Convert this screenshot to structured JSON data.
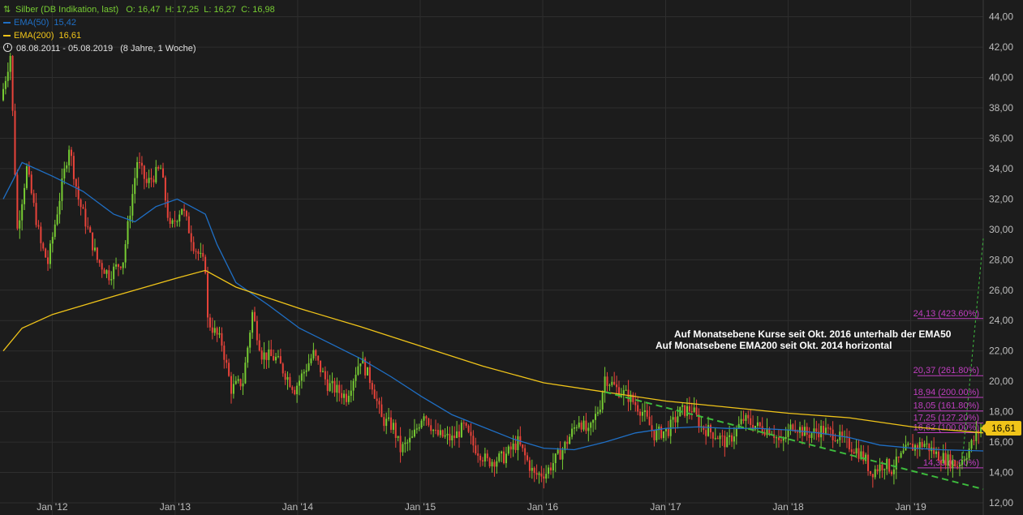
{
  "legend": {
    "symbol_icon": "candlestick-icon",
    "symbol_label": "Silber (DB Indikation, last)",
    "ohlc": {
      "open": "O: 16,47",
      "high": "H: 17,25",
      "low": "L: 16,27",
      "close": "C: 16,98"
    },
    "ema50_label": "EMA(50)",
    "ema50_value": "15,42",
    "ema200_label": "EMA(200)",
    "ema200_value": "16,61",
    "range_label": "08.08.2011 - 05.08.2019",
    "range_duration": "(8 Jahre, 1 Woche)"
  },
  "annotations": {
    "line1": "Auf Monatsebene Kurse seit Okt. 2016 unterhalb der EMA50",
    "line2": "Auf Monatsebene EMA200 seit Okt. 2014 horizontal"
  },
  "price_badge": "16,61",
  "colors": {
    "background": "#1c1c1c",
    "grid": "#2e2e2e",
    "axis_text": "#bdbdbd",
    "candle_up": "#77cc33",
    "candle_down": "#e8433a",
    "ema50": "#1f6fc5",
    "ema200": "#f0c419",
    "fibonacci": "#c03fc0",
    "trendline": "#3dbb3d",
    "annotation": "#ffffff"
  },
  "chart_data": {
    "type": "candlestick",
    "title": "Silber (DB Indikation, last)",
    "x_range": [
      "2011-08-08",
      "2019-08-05"
    ],
    "ylim": [
      11.2,
      45.1
    ],
    "y_ticks": [
      "12,00",
      "14,00",
      "16,00",
      "18,00",
      "20,00",
      "22,00",
      "24,00",
      "26,00",
      "28,00",
      "30,00",
      "32,00",
      "34,00",
      "36,00",
      "38,00",
      "40,00",
      "42,00",
      "44,00"
    ],
    "x_ticks": [
      {
        "label": "Jan '12",
        "date": "2012-01-01"
      },
      {
        "label": "Jan '13",
        "date": "2013-01-01"
      },
      {
        "label": "Jan '14",
        "date": "2014-01-01"
      },
      {
        "label": "Jan '15",
        "date": "2015-01-01"
      },
      {
        "label": "Jan '16",
        "date": "2016-01-01"
      },
      {
        "label": "Jan '17",
        "date": "2017-01-01"
      },
      {
        "label": "Jan '18",
        "date": "2018-01-01"
      },
      {
        "label": "Jan '19",
        "date": "2019-01-01"
      }
    ],
    "grid": true,
    "price_path": [
      [
        "2011-08-08",
        38.5
      ],
      [
        "2011-09-05",
        41.5
      ],
      [
        "2011-09-26",
        30.0
      ],
      [
        "2011-10-24",
        34.0
      ],
      [
        "2011-12-05",
        29.0
      ],
      [
        "2011-12-26",
        27.8
      ],
      [
        "2012-02-27",
        35.5
      ],
      [
        "2012-03-26",
        32.0
      ],
      [
        "2012-05-21",
        28.0
      ],
      [
        "2012-06-25",
        27.0
      ],
      [
        "2012-08-06",
        28.0
      ],
      [
        "2012-09-17",
        34.5
      ],
      [
        "2012-10-15",
        33.0
      ],
      [
        "2012-11-26",
        34.0
      ],
      [
        "2012-12-24",
        30.0
      ],
      [
        "2013-01-28",
        31.5
      ],
      [
        "2013-03-04",
        29.0
      ],
      [
        "2013-04-08",
        27.5
      ],
      [
        "2013-04-15",
        24.0
      ],
      [
        "2013-05-27",
        22.5
      ],
      [
        "2013-06-24",
        19.5
      ],
      [
        "2013-07-29",
        20.0
      ],
      [
        "2013-08-26",
        24.5
      ],
      [
        "2013-09-23",
        21.8
      ],
      [
        "2013-11-04",
        21.5
      ],
      [
        "2013-12-30",
        19.5
      ],
      [
        "2014-02-24",
        21.8
      ],
      [
        "2014-04-07",
        19.8
      ],
      [
        "2014-06-02",
        19.0
      ],
      [
        "2014-07-14",
        21.5
      ],
      [
        "2014-08-18",
        19.8
      ],
      [
        "2014-09-15",
        17.5
      ],
      [
        "2014-10-20",
        17.0
      ],
      [
        "2014-11-10",
        15.5
      ],
      [
        "2014-12-15",
        16.2
      ],
      [
        "2015-01-19",
        18.0
      ],
      [
        "2015-02-23",
        16.5
      ],
      [
        "2015-04-13",
        16.2
      ],
      [
        "2015-05-18",
        17.0
      ],
      [
        "2015-06-15",
        15.8
      ],
      [
        "2015-07-27",
        14.7
      ],
      [
        "2015-09-14",
        15.0
      ],
      [
        "2015-10-26",
        16.0
      ],
      [
        "2015-12-14",
        13.8
      ],
      [
        "2016-01-18",
        14.0
      ],
      [
        "2016-03-07",
        15.5
      ],
      [
        "2016-04-25",
        17.5
      ],
      [
        "2016-05-23",
        16.5
      ],
      [
        "2016-06-27",
        18.5
      ],
      [
        "2016-07-11",
        20.3
      ],
      [
        "2016-08-15",
        19.5
      ],
      [
        "2016-09-19",
        19.0
      ],
      [
        "2016-10-31",
        18.0
      ],
      [
        "2016-12-05",
        16.5
      ],
      [
        "2017-01-16",
        16.8
      ],
      [
        "2017-02-20",
        18.0
      ],
      [
        "2017-03-27",
        18.2
      ],
      [
        "2017-04-24",
        17.0
      ],
      [
        "2017-06-05",
        16.5
      ],
      [
        "2017-07-10",
        15.9
      ],
      [
        "2017-08-28",
        17.5
      ],
      [
        "2017-10-09",
        17.0
      ],
      [
        "2017-11-20",
        16.8
      ],
      [
        "2017-12-18",
        15.8
      ],
      [
        "2018-01-22",
        17.2
      ],
      [
        "2018-03-05",
        16.5
      ],
      [
        "2018-04-16",
        16.8
      ],
      [
        "2018-05-28",
        16.5
      ],
      [
        "2018-06-25",
        16.0
      ],
      [
        "2018-07-30",
        15.5
      ],
      [
        "2018-08-27",
        14.8
      ],
      [
        "2018-09-10",
        14.0
      ],
      [
        "2018-10-22",
        14.6
      ],
      [
        "2018-11-12",
        14.2
      ],
      [
        "2018-12-31",
        15.6
      ],
      [
        "2019-02-18",
        15.9
      ],
      [
        "2019-03-25",
        15.2
      ],
      [
        "2019-04-29",
        14.8
      ],
      [
        "2019-05-27",
        14.5
      ],
      [
        "2019-06-24",
        15.3
      ],
      [
        "2019-07-22",
        16.4
      ],
      [
        "2019-08-05",
        16.98
      ]
    ],
    "series": [
      {
        "name": "EMA(50)",
        "points": [
          [
            "2011-08-08",
            32.0
          ],
          [
            "2011-10-03",
            34.4
          ],
          [
            "2012-01-02",
            33.5
          ],
          [
            "2012-04-02",
            32.5
          ],
          [
            "2012-07-02",
            31.0
          ],
          [
            "2012-09-03",
            30.5
          ],
          [
            "2012-11-05",
            31.5
          ],
          [
            "2013-01-07",
            32.0
          ],
          [
            "2013-04-01",
            31.0
          ],
          [
            "2013-05-06",
            29.0
          ],
          [
            "2013-07-01",
            26.5
          ],
          [
            "2013-10-07",
            25.0
          ],
          [
            "2014-01-06",
            23.5
          ],
          [
            "2014-04-07",
            22.5
          ],
          [
            "2014-07-07",
            21.5
          ],
          [
            "2014-10-06",
            20.3
          ],
          [
            "2015-01-05",
            19.0
          ],
          [
            "2015-04-06",
            17.8
          ],
          [
            "2015-07-06",
            17.0
          ],
          [
            "2015-10-05",
            16.2
          ],
          [
            "2016-01-04",
            15.6
          ],
          [
            "2016-04-04",
            15.5
          ],
          [
            "2016-07-04",
            16.0
          ],
          [
            "2016-10-03",
            16.6
          ],
          [
            "2017-01-02",
            16.9
          ],
          [
            "2017-04-03",
            17.0
          ],
          [
            "2017-07-03",
            16.9
          ],
          [
            "2017-10-02",
            16.9
          ],
          [
            "2018-01-01",
            16.8
          ],
          [
            "2018-04-02",
            16.6
          ],
          [
            "2018-07-02",
            16.3
          ],
          [
            "2018-10-01",
            15.8
          ],
          [
            "2019-01-07",
            15.6
          ],
          [
            "2019-04-01",
            15.5
          ],
          [
            "2019-08-05",
            15.42
          ]
        ]
      },
      {
        "name": "EMA(200)",
        "points": [
          [
            "2011-08-08",
            22.0
          ],
          [
            "2011-10-03",
            23.5
          ],
          [
            "2012-01-02",
            24.4
          ],
          [
            "2012-07-02",
            25.6
          ],
          [
            "2013-01-07",
            26.8
          ],
          [
            "2013-04-01",
            27.3
          ],
          [
            "2013-07-01",
            26.2
          ],
          [
            "2014-01-06",
            24.8
          ],
          [
            "2014-07-07",
            23.6
          ],
          [
            "2015-01-05",
            22.3
          ],
          [
            "2015-07-06",
            21.0
          ],
          [
            "2016-01-04",
            19.9
          ],
          [
            "2016-07-04",
            19.3
          ],
          [
            "2017-01-02",
            18.7
          ],
          [
            "2017-07-03",
            18.3
          ],
          [
            "2018-01-01",
            17.9
          ],
          [
            "2018-07-02",
            17.6
          ],
          [
            "2019-01-07",
            17.0
          ],
          [
            "2019-08-05",
            16.61
          ]
        ]
      }
    ],
    "trendlines": [
      {
        "style": "dashed",
        "from": [
          "2016-07-04",
          19.3
        ],
        "to": [
          "2019-05-27",
          15.9
        ],
        "extends_to": [
          "2019-08-05",
          12.9
        ]
      },
      {
        "style": "dotted",
        "from": [
          "2019-06-03",
          14.6
        ],
        "to": [
          "2019-08-05",
          29.4
        ]
      }
    ],
    "fibonacci_levels": [
      {
        "label": "24,13 (423.60%)",
        "value": 24.13
      },
      {
        "label": "20,37 (261.80%)",
        "value": 20.37
      },
      {
        "label": "18,94 (200.00%)",
        "value": 18.94
      },
      {
        "label": "18,05 (161.80%)",
        "value": 18.05
      },
      {
        "label": "17,25 (127.20%)",
        "value": 17.25
      },
      {
        "label": "16,62 (100.00%)",
        "value": 16.62
      },
      {
        "label": "14,30 (0.00%)",
        "value": 14.3
      }
    ],
    "fibonacci_start": "2019-01-21"
  }
}
